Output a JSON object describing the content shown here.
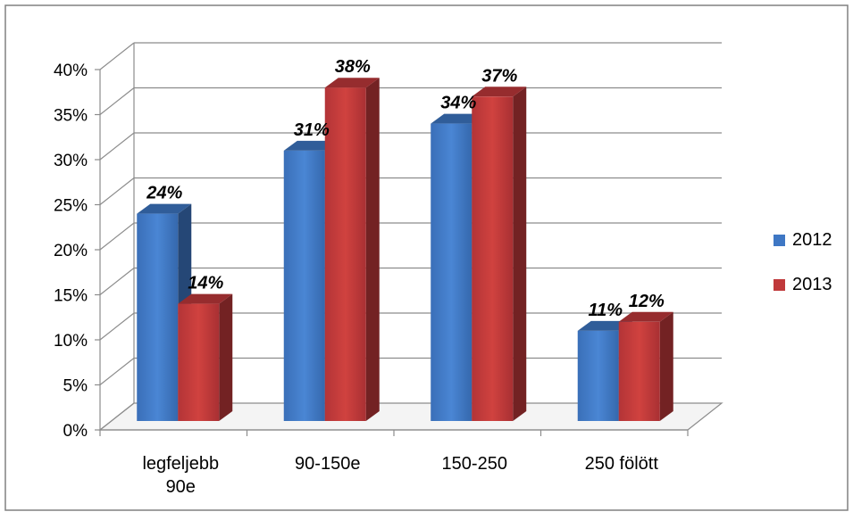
{
  "chart_data": {
    "type": "bar",
    "style": "3d-clustered-column",
    "categories": [
      "legfeljebb 90e",
      "90-150e",
      "150-250",
      "250 fölött"
    ],
    "series": [
      {
        "name": "2012",
        "values": [
          24,
          31,
          34,
          11
        ],
        "color": "#3e77c4",
        "labels": [
          "24%",
          "31%",
          "34%",
          "11%"
        ]
      },
      {
        "name": "2013",
        "values": [
          14,
          38,
          37,
          12
        ],
        "color": "#c0393b",
        "labels": [
          "14%",
          "38%",
          "37%",
          "12%"
        ]
      }
    ],
    "title": "",
    "xlabel": "",
    "ylabel": "",
    "ylim": [
      0,
      40
    ],
    "yticks": [
      "0%",
      "5%",
      "10%",
      "15%",
      "20%",
      "25%",
      "30%",
      "35%",
      "40%"
    ],
    "grid": true,
    "legend": "right"
  }
}
